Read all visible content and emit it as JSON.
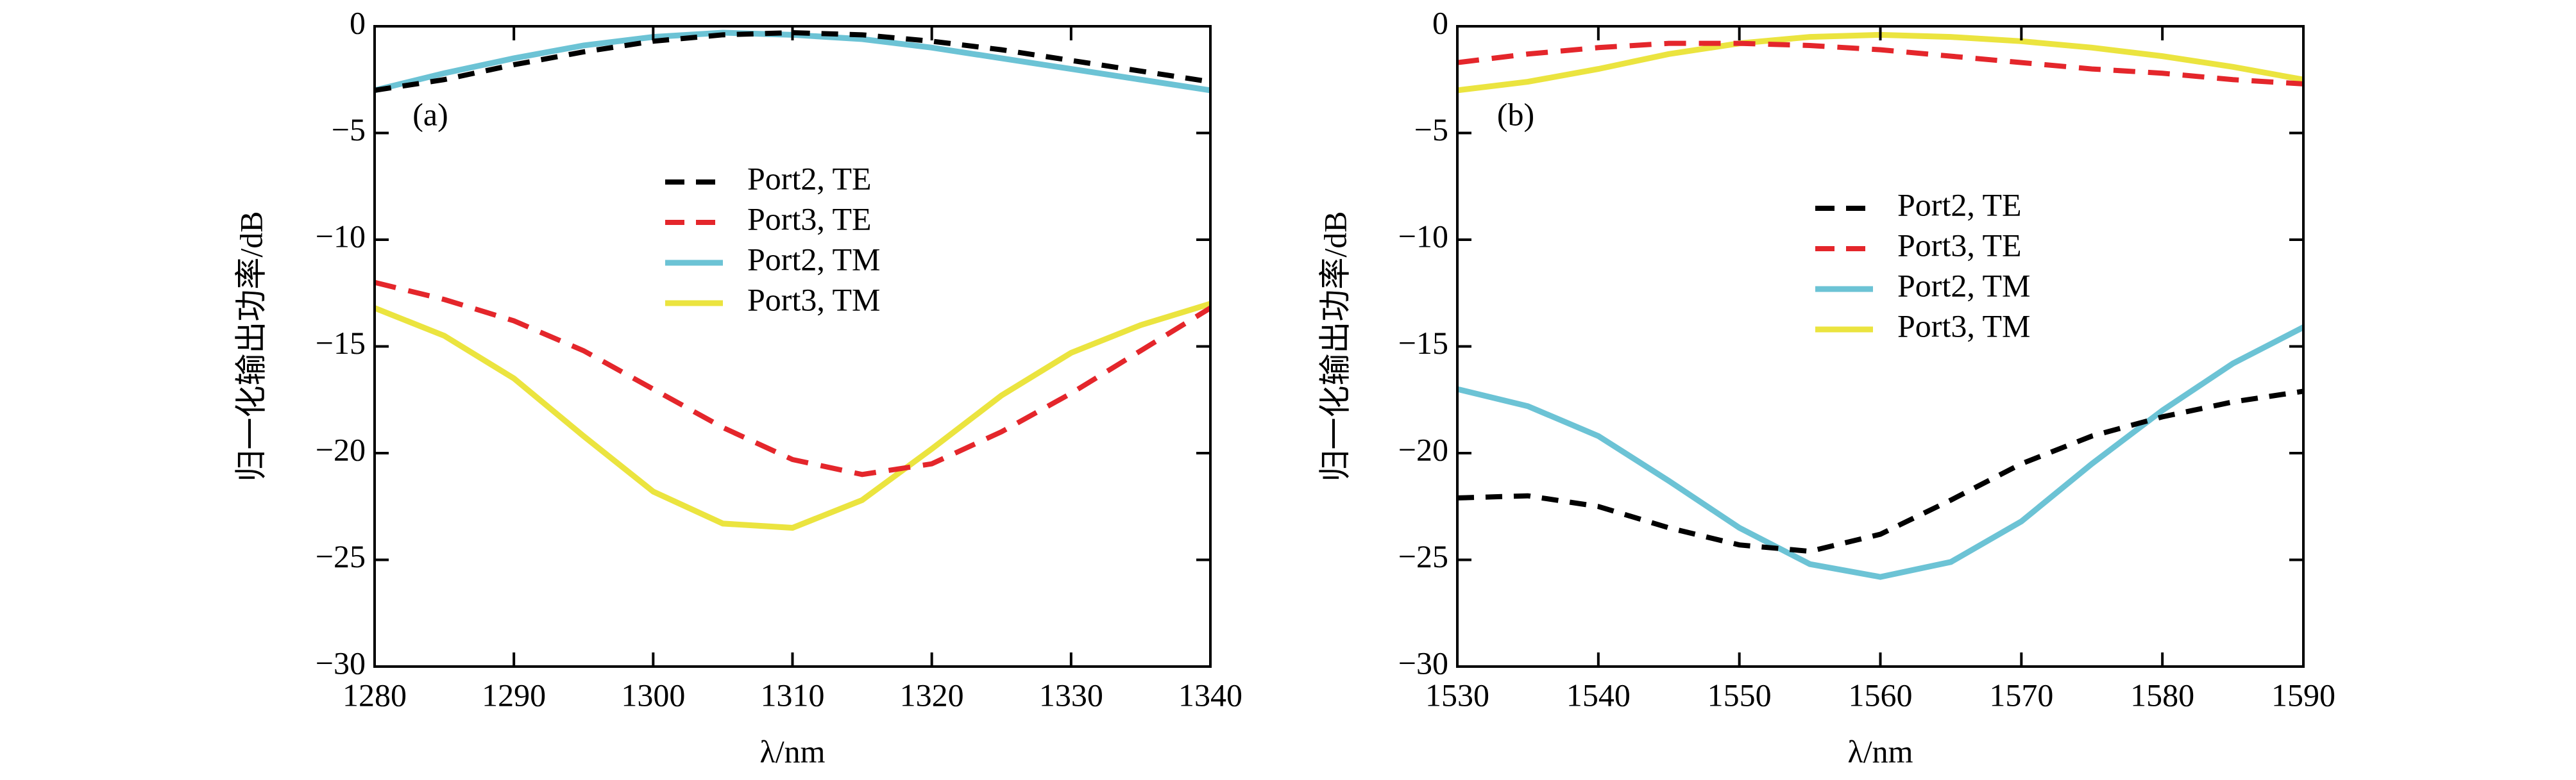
{
  "chart_data": [
    {
      "type": "line",
      "panel_label": "(a)",
      "xlabel": "λ/nm",
      "ylabel": "归一化输出功率/dB",
      "x": [
        1280,
        1285,
        1290,
        1295,
        1300,
        1305,
        1310,
        1315,
        1320,
        1325,
        1330,
        1335,
        1340
      ],
      "xlim": [
        1280,
        1340
      ],
      "ylim": [
        -30,
        0
      ],
      "xticks": [
        1280,
        1290,
        1300,
        1310,
        1320,
        1330,
        1340
      ],
      "yticks": [
        {
          "value": 0,
          "label": "0"
        },
        {
          "value": -5,
          "label": "−5"
        },
        {
          "value": -10,
          "label": "−10"
        },
        {
          "value": -15,
          "label": "−15"
        },
        {
          "value": -20,
          "label": "−20"
        },
        {
          "value": -25,
          "label": "−25"
        },
        {
          "value": -30,
          "label": "−30"
        }
      ],
      "series": [
        {
          "name": "Port2, TE",
          "color": "#000000",
          "dash": "dashed",
          "values": [
            -3.0,
            -2.5,
            -1.8,
            -1.2,
            -0.7,
            -0.4,
            -0.3,
            -0.4,
            -0.7,
            -1.1,
            -1.6,
            -2.1,
            -2.6
          ]
        },
        {
          "name": "Port3, TE",
          "color": "#e4262b",
          "dash": "dashed",
          "values": [
            -12.0,
            -12.8,
            -13.8,
            -15.2,
            -17.0,
            -18.8,
            -20.3,
            -21.0,
            -20.5,
            -19.0,
            -17.2,
            -15.2,
            -13.2
          ]
        },
        {
          "name": "Port2, TM",
          "color": "#6cc3d5",
          "dash": "solid",
          "values": [
            -3.0,
            -2.2,
            -1.5,
            -0.9,
            -0.5,
            -0.3,
            -0.4,
            -0.6,
            -1.0,
            -1.5,
            -2.0,
            -2.5,
            -3.0
          ]
        },
        {
          "name": "Port3, TM",
          "color": "#ebe43f",
          "dash": "solid",
          "values": [
            -13.2,
            -14.5,
            -16.5,
            -19.2,
            -21.8,
            -23.3,
            -23.5,
            -22.2,
            -19.8,
            -17.3,
            -15.3,
            -14.0,
            -13.0
          ]
        }
      ]
    },
    {
      "type": "line",
      "panel_label": "(b)",
      "xlabel": "λ/nm",
      "ylabel": "归一化输出功率/dB",
      "x": [
        1530,
        1535,
        1540,
        1545,
        1550,
        1555,
        1560,
        1565,
        1570,
        1575,
        1580,
        1585,
        1590
      ],
      "xlim": [
        1530,
        1590
      ],
      "ylim": [
        -30,
        0
      ],
      "xticks": [
        1530,
        1540,
        1550,
        1560,
        1570,
        1580,
        1590
      ],
      "yticks": [
        {
          "value": 0,
          "label": "0"
        },
        {
          "value": -5,
          "label": "−5"
        },
        {
          "value": -10,
          "label": "−10"
        },
        {
          "value": -15,
          "label": "−15"
        },
        {
          "value": -20,
          "label": "−20"
        },
        {
          "value": -25,
          "label": "−25"
        },
        {
          "value": -30,
          "label": "−30"
        }
      ],
      "series": [
        {
          "name": "Port2, TE",
          "color": "#000000",
          "dash": "dashed",
          "values": [
            -22.1,
            -22.0,
            -22.5,
            -23.5,
            -24.3,
            -24.6,
            -23.8,
            -22.2,
            -20.5,
            -19.2,
            -18.3,
            -17.6,
            -17.1
          ]
        },
        {
          "name": "Port3, TE",
          "color": "#e4262b",
          "dash": "dashed",
          "values": [
            -1.7,
            -1.3,
            -1.0,
            -0.8,
            -0.8,
            -0.9,
            -1.1,
            -1.4,
            -1.7,
            -2.0,
            -2.2,
            -2.5,
            -2.7
          ]
        },
        {
          "name": "Port2, TM",
          "color": "#6cc3d5",
          "dash": "solid",
          "values": [
            -17.0,
            -17.8,
            -19.2,
            -21.3,
            -23.5,
            -25.2,
            -25.8,
            -25.1,
            -23.2,
            -20.5,
            -18.0,
            -15.8,
            -14.1
          ]
        },
        {
          "name": "Port3, TM",
          "color": "#ebe43f",
          "dash": "solid",
          "values": [
            -3.0,
            -2.6,
            -2.0,
            -1.3,
            -0.8,
            -0.5,
            -0.4,
            -0.5,
            -0.7,
            -1.0,
            -1.4,
            -1.9,
            -2.5
          ]
        }
      ]
    }
  ]
}
